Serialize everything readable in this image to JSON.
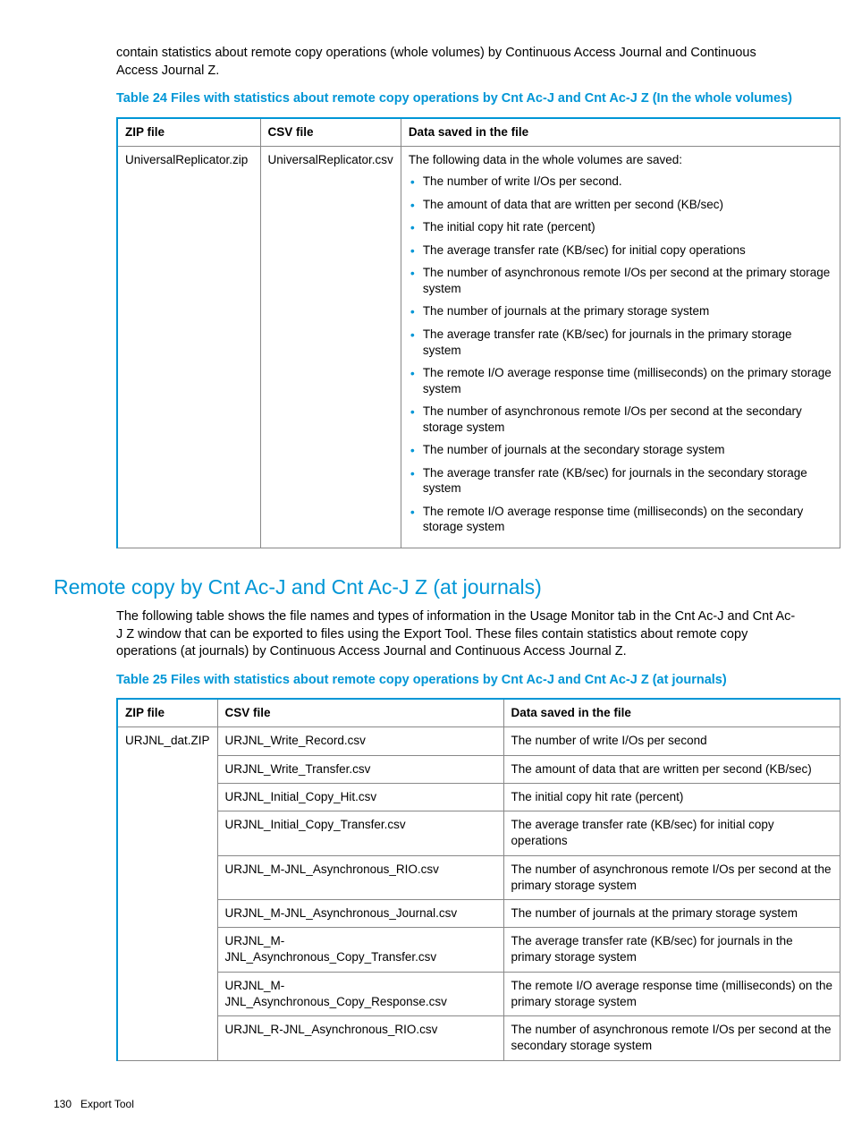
{
  "intro1": "contain statistics about remote copy operations (whole volumes) by Continuous Access Journal and Continuous Access Journal Z.",
  "caption24": "Table 24 Files with statistics about remote copy operations by Cnt Ac-J and Cnt Ac-J Z (In the whole volumes)",
  "t24": {
    "headers": [
      "ZIP file",
      "CSV file",
      "Data saved in the file"
    ],
    "zip": "UniversalReplicator.zip",
    "csv": "UniversalReplicator.csv",
    "data_lead": "The following data in the whole volumes are saved:",
    "bullets": [
      "The number of write I/Os per second.",
      "The amount of data that are written per second (KB/sec)",
      "The initial copy hit rate (percent)",
      "The average transfer rate (KB/sec) for initial copy operations",
      "The number of asynchronous remote I/Os per second at the primary storage system",
      "The number of journals at the primary storage system",
      "The average transfer rate (KB/sec) for journals in the primary storage system",
      "The remote I/O average response time (milliseconds) on the primary storage system",
      "The number of asynchronous remote I/Os per second at the secondary storage system",
      "The number of journals at the secondary storage system",
      "The average transfer rate (KB/sec) for journals in the secondary storage system",
      "The remote I/O average response time (milliseconds) on the secondary storage system"
    ]
  },
  "section_heading": "Remote copy by Cnt Ac-J and Cnt Ac-J Z (at journals)",
  "intro2": "The following table shows the file names and types of information in the Usage Monitor tab in the Cnt Ac-J and Cnt Ac-J Z window that can be exported to files using the Export Tool. These files contain statistics about remote copy operations (at journals) by Continuous Access Journal and Continuous Access Journal Z.",
  "caption25": "Table 25 Files with statistics about remote copy operations by Cnt Ac-J and Cnt Ac-J Z (at journals)",
  "t25": {
    "headers": [
      "ZIP file",
      "CSV file",
      "Data saved in the file"
    ],
    "zip": "URJNL_dat.ZIP",
    "rows": [
      {
        "csv": "URJNL_Write_Record.csv",
        "data": "The number of write I/Os per second"
      },
      {
        "csv": "URJNL_Write_Transfer.csv",
        "data": "The amount of data that are written per second (KB/sec)"
      },
      {
        "csv": "URJNL_Initial_Copy_Hit.csv",
        "data": "The initial copy hit rate (percent)"
      },
      {
        "csv": "URJNL_Initial_Copy_Transfer.csv",
        "data": "The average transfer rate (KB/sec) for initial copy operations"
      },
      {
        "csv": "URJNL_M-JNL_Asynchronous_RIO.csv",
        "data": "The number of asynchronous remote I/Os per second at the primary storage system"
      },
      {
        "csv": "URJNL_M-JNL_Asynchronous_Journal.csv",
        "data": "The number of journals at the primary storage system"
      },
      {
        "csv": "URJNL_M-JNL_Asynchronous_Copy_Transfer.csv",
        "data": "The average transfer rate (KB/sec) for journals in the primary storage system"
      },
      {
        "csv": "URJNL_M-JNL_Asynchronous_Copy_Response.csv",
        "data": "The remote I/O average response time (milliseconds) on the primary storage system"
      },
      {
        "csv": "URJNL_R-JNL_Asynchronous_RIO.csv",
        "data": "The number of asynchronous remote I/Os per second at the secondary storage system"
      }
    ]
  },
  "footer_page": "130",
  "footer_label": "Export Tool"
}
